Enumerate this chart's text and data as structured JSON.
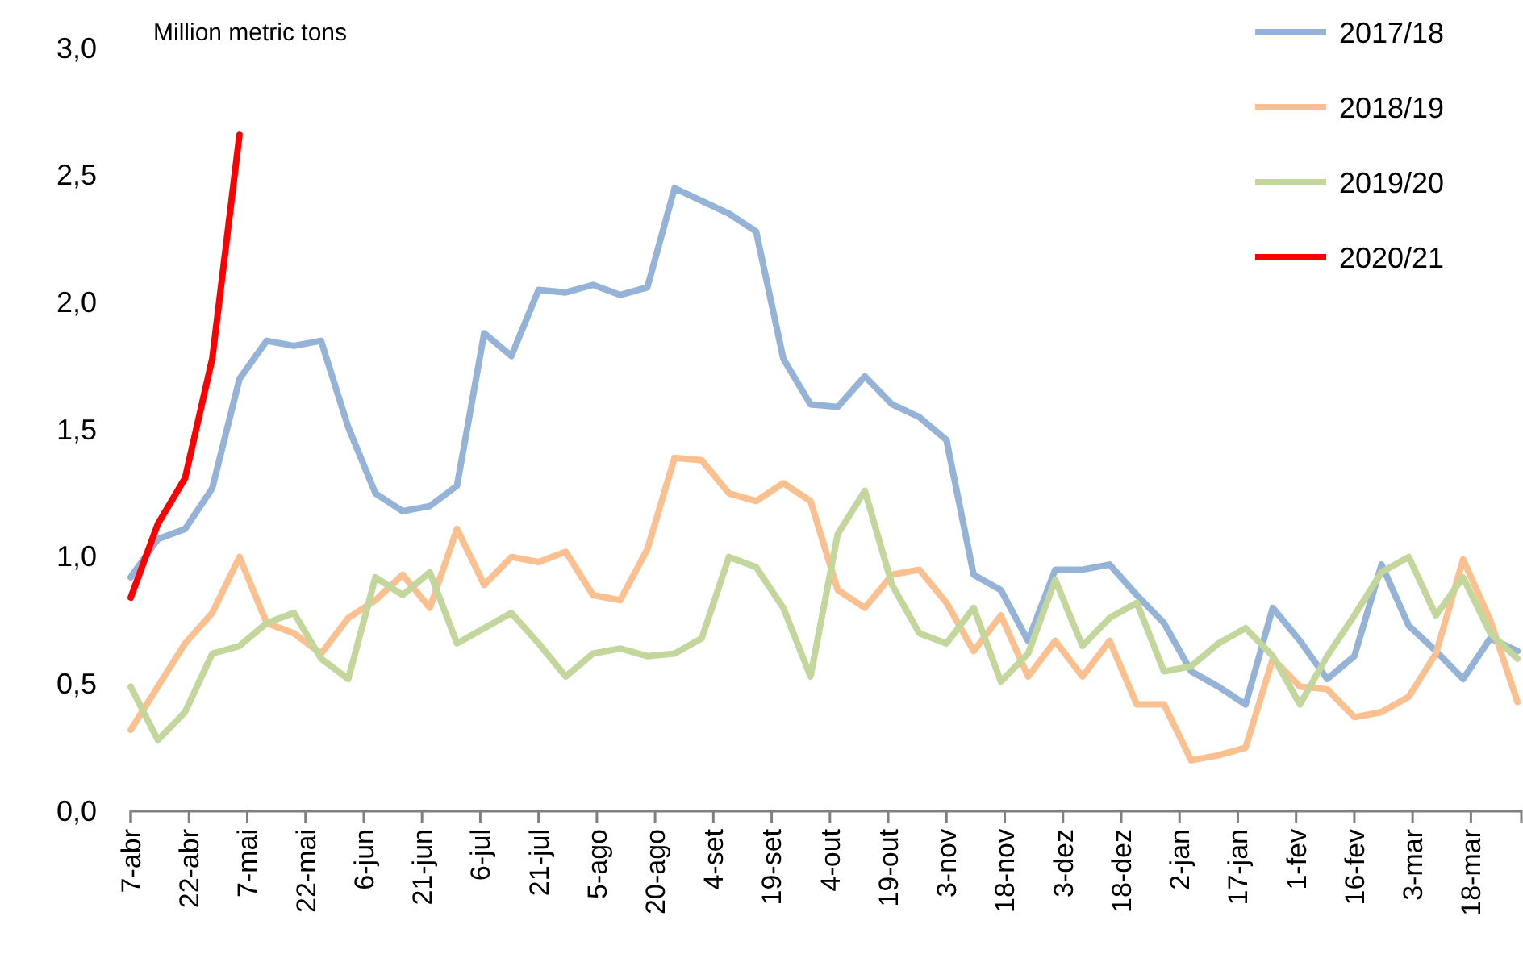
{
  "chart_data": {
    "type": "line",
    "annotations": [
      "Million metric tons"
    ],
    "x": [
      "2020-04-07",
      "2020-04-14",
      "2020-04-21",
      "2020-04-28",
      "2020-05-05",
      "2020-05-12",
      "2020-05-19",
      "2020-05-26",
      "2020-06-02",
      "2020-06-09",
      "2020-06-16",
      "2020-06-23",
      "2020-06-30",
      "2020-07-07",
      "2020-07-14",
      "2020-07-21",
      "2020-07-28",
      "2020-08-04",
      "2020-08-11",
      "2020-08-18",
      "2020-08-25",
      "2020-09-01",
      "2020-09-08",
      "2020-09-15",
      "2020-09-22",
      "2020-09-29",
      "2020-10-06",
      "2020-10-13",
      "2020-10-20",
      "2020-10-27",
      "2020-11-03",
      "2020-11-10",
      "2020-11-17",
      "2020-11-24",
      "2020-12-01",
      "2020-12-08",
      "2020-12-15",
      "2020-12-22",
      "2020-12-29",
      "2021-01-05",
      "2021-01-12",
      "2021-01-19",
      "2021-01-26",
      "2021-02-02",
      "2021-02-09",
      "2021-02-16",
      "2021-02-23",
      "2021-03-02",
      "2021-03-09",
      "2021-03-16",
      "2021-03-23",
      "2021-03-30"
    ],
    "series": [
      {
        "name": "2017/18",
        "color": "#95b3d7",
        "values": [
          0.92,
          1.07,
          1.11,
          1.27,
          1.7,
          1.85,
          1.83,
          1.85,
          1.51,
          1.25,
          1.18,
          1.2,
          1.28,
          1.88,
          1.79,
          2.05,
          2.04,
          2.07,
          2.03,
          2.06,
          2.45,
          2.4,
          2.35,
          2.28,
          1.78,
          1.6,
          1.59,
          1.71,
          1.6,
          1.55,
          1.46,
          0.93,
          0.87,
          0.67,
          0.95,
          0.95,
          0.97,
          0.85,
          0.74,
          0.55,
          0.49,
          0.42,
          0.8,
          0.67,
          0.52,
          0.61,
          0.97,
          0.73,
          0.63,
          0.52,
          0.68,
          0.63
        ]
      },
      {
        "name": "2018/19",
        "color": "#fac090",
        "values": [
          0.32,
          0.49,
          0.66,
          0.78,
          1.0,
          0.74,
          0.7,
          0.62,
          0.76,
          0.83,
          0.93,
          0.8,
          1.11,
          0.89,
          1.0,
          0.98,
          1.02,
          0.85,
          0.83,
          1.03,
          1.39,
          1.38,
          1.25,
          1.22,
          1.29,
          1.22,
          0.87,
          0.8,
          0.93,
          0.95,
          0.82,
          0.63,
          0.77,
          0.53,
          0.67,
          0.53,
          0.67,
          0.42,
          0.42,
          0.2,
          0.22,
          0.25,
          0.6,
          0.49,
          0.48,
          0.37,
          0.39,
          0.45,
          0.62,
          0.99,
          0.75,
          0.43
        ]
      },
      {
        "name": "2019/20",
        "color": "#c3d69b",
        "values": [
          0.49,
          0.28,
          0.39,
          0.62,
          0.65,
          0.74,
          0.78,
          0.6,
          0.52,
          0.92,
          0.85,
          0.94,
          0.66,
          0.72,
          0.78,
          0.66,
          0.53,
          0.62,
          0.64,
          0.61,
          0.62,
          0.68,
          1.0,
          0.96,
          0.8,
          0.53,
          1.09,
          1.26,
          0.89,
          0.7,
          0.66,
          0.8,
          0.51,
          0.62,
          0.91,
          0.65,
          0.76,
          0.82,
          0.55,
          0.57,
          0.66,
          0.72,
          0.61,
          0.42,
          0.61,
          0.77,
          0.94,
          1.0,
          0.77,
          0.92,
          0.7,
          0.6
        ]
      },
      {
        "name": "2020/21",
        "color": "#ff0000",
        "x": [
          "2020-04-07",
          "2020-04-14",
          "2020-04-21",
          "2020-04-28",
          "2020-05-05"
        ],
        "values": [
          0.84,
          1.13,
          1.31,
          1.78,
          2.66
        ]
      }
    ],
    "xlim": [
      "2020-04-07",
      "2021-03-31"
    ],
    "xticks": [
      {
        "value": "2020-04-07",
        "label": "7-abr"
      },
      {
        "value": "2020-04-22",
        "label": "22-abr"
      },
      {
        "value": "2020-05-07",
        "label": "7-mai"
      },
      {
        "value": "2020-05-22",
        "label": "22-mai"
      },
      {
        "value": "2020-06-06",
        "label": "6-jun"
      },
      {
        "value": "2020-06-21",
        "label": "21-jun"
      },
      {
        "value": "2020-07-06",
        "label": "6-jul"
      },
      {
        "value": "2020-07-21",
        "label": "21-jul"
      },
      {
        "value": "2020-08-05",
        "label": "5-ago"
      },
      {
        "value": "2020-08-20",
        "label": "20-ago"
      },
      {
        "value": "2020-09-04",
        "label": "4-set"
      },
      {
        "value": "2020-09-19",
        "label": "19-set"
      },
      {
        "value": "2020-10-04",
        "label": "4-out"
      },
      {
        "value": "2020-10-19",
        "label": "19-out"
      },
      {
        "value": "2020-11-03",
        "label": "3-nov"
      },
      {
        "value": "2020-11-18",
        "label": "18-nov"
      },
      {
        "value": "2020-12-03",
        "label": "3-dez"
      },
      {
        "value": "2020-12-18",
        "label": "18-dez"
      },
      {
        "value": "2021-01-02",
        "label": "2-jan"
      },
      {
        "value": "2021-01-17",
        "label": "17-jan"
      },
      {
        "value": "2021-02-01",
        "label": "1-fev"
      },
      {
        "value": "2021-02-16",
        "label": "16-fev"
      },
      {
        "value": "2021-03-03",
        "label": "3-mar"
      },
      {
        "value": "2021-03-18",
        "label": "18-mar"
      }
    ],
    "ylim": [
      0,
      3
    ],
    "yticks": [
      {
        "value": 0,
        "label": "0,0"
      },
      {
        "value": 0.5,
        "label": "0,5"
      },
      {
        "value": 1,
        "label": "1,0"
      },
      {
        "value": 1.5,
        "label": "1,5"
      },
      {
        "value": 2,
        "label": "2,0"
      },
      {
        "value": 2.5,
        "label": "2,5"
      },
      {
        "value": 3,
        "label": "3,0"
      }
    ],
    "grid": false,
    "legend": "top right",
    "marker": "none",
    "line_style": "solid"
  }
}
